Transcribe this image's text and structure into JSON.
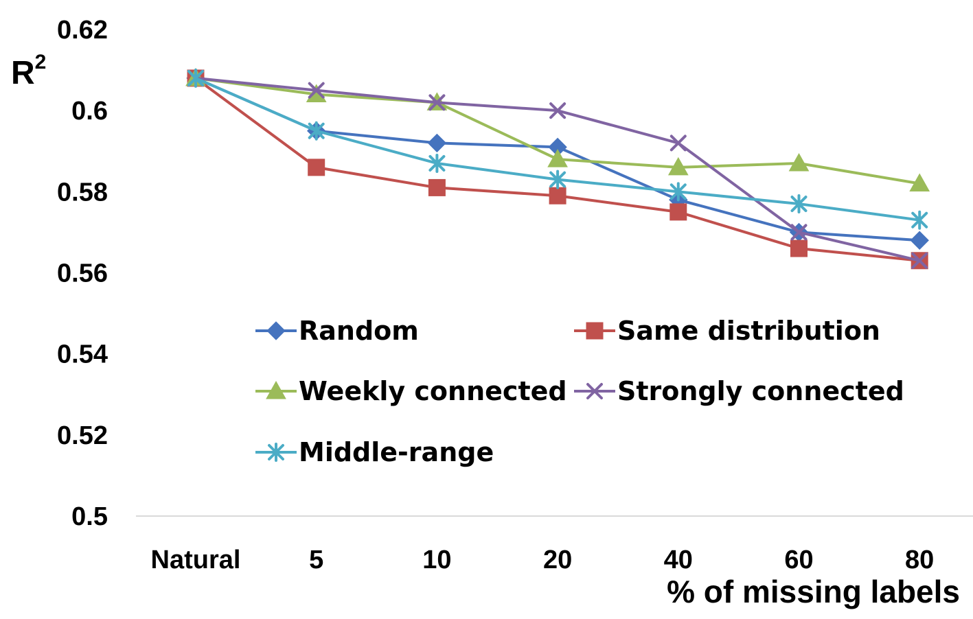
{
  "chart_data": {
    "type": "line",
    "title": "",
    "xlabel": "% of missing labels",
    "ylabel": "R",
    "ylabel_superscript": "2",
    "categories": [
      "Natural",
      "5",
      "10",
      "20",
      "40",
      "60",
      "80"
    ],
    "ylim": [
      0.5,
      0.62
    ],
    "yticks": [
      0.5,
      0.52,
      0.54,
      0.56,
      0.58,
      0.6,
      0.62
    ],
    "ytick_labels": [
      "0.5",
      "0.52",
      "0.54",
      "0.56",
      "0.58",
      "0.6",
      "0.62"
    ],
    "grid": false,
    "legend_position": "center",
    "series": [
      {
        "name": "Random",
        "color": "#4573BE",
        "marker": "diamond",
        "values": [
          0.608,
          0.595,
          0.592,
          0.591,
          0.578,
          0.57,
          0.568
        ]
      },
      {
        "name": "Same distribution",
        "color": "#C0504D",
        "marker": "square",
        "values": [
          0.608,
          0.586,
          0.581,
          0.579,
          0.575,
          0.566,
          0.563
        ]
      },
      {
        "name": "Weekly connected",
        "color": "#9BBB59",
        "marker": "triangle",
        "values": [
          0.608,
          0.604,
          0.602,
          0.588,
          0.586,
          0.587,
          0.582
        ]
      },
      {
        "name": "Strongly connected",
        "color": "#8064A2",
        "marker": "x",
        "values": [
          0.608,
          0.605,
          0.602,
          0.6,
          0.592,
          0.57,
          0.563
        ]
      },
      {
        "name": "Middle-range",
        "color": "#4BACC6",
        "marker": "asterisk",
        "values": [
          0.608,
          0.595,
          0.587,
          0.583,
          0.58,
          0.577,
          0.573
        ]
      }
    ]
  }
}
